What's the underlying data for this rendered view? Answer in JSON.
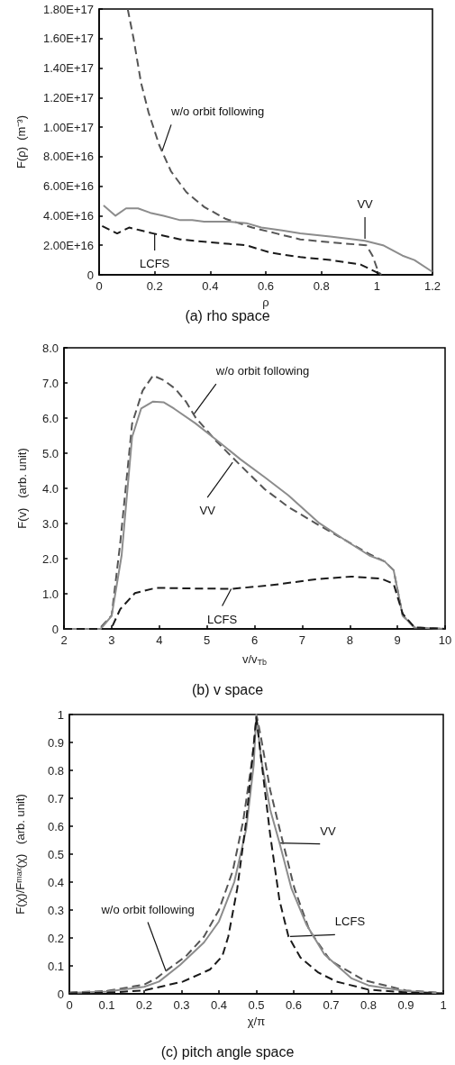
{
  "chart_data": [
    {
      "type": "line",
      "title": "(a) rho space",
      "xlabel": "ρ",
      "ylabel": "F(ρ)  (m⁻³)",
      "xlim": [
        0,
        1.2
      ],
      "ylim": [
        0,
        1.8e+17
      ],
      "xticks": [
        0,
        0.2,
        0.4,
        0.6,
        0.8,
        1,
        1.2
      ],
      "yticks": [
        0,
        {
          "value": 2e+16,
          "label": "2.00E+16"
        },
        {
          "value": 4e+16,
          "label": "4.00E+16"
        },
        {
          "value": 6e+16,
          "label": "6.00E+16"
        },
        {
          "value": 8e+16,
          "label": "8.00E+16"
        },
        {
          "value": 1e+17,
          "label": "1.00E+17"
        },
        {
          "value": 1.2e+17,
          "label": "1.20E+17"
        },
        {
          "value": 1.4e+17,
          "label": "1.40E+17"
        },
        {
          "value": 1.6e+17,
          "label": "1.60E+17"
        },
        {
          "value": 1.8e+17,
          "label": "1.80E+17"
        }
      ],
      "series": [
        {
          "color": "#555555",
          "line_style": "dashed",
          "x": [
            0.103,
            0.124,
            0.151,
            0.178,
            0.216,
            0.259,
            0.314,
            0.378,
            0.454,
            0.551,
            0.638,
            0.724,
            0.832,
            0.962,
            0.984,
            1.005,
            1.016
          ],
          "values": [
            1.8e+17,
            1.6e+17,
            1.3e+17,
            1.1e+17,
            8.8e+16,
            7e+16,
            5.6e+16,
            4.6e+16,
            3.8e+16,
            3.2e+16,
            2.8e+16,
            2.4e+16,
            2.2e+16,
            2e+16,
            1.3e+16,
            2000000000000000.0,
            0
          ]
        },
        {
          "color": "#8c8c8c",
          "line_style": "solid",
          "x": [
            0.016,
            0.059,
            0.097,
            0.14,
            0.184,
            0.232,
            0.292,
            0.335,
            0.378,
            0.465,
            0.53,
            0.584,
            0.659,
            0.724,
            0.832,
            0.919,
            0.957,
            1.022,
            1.092,
            1.135,
            1.2
          ],
          "values": [
            4.7e+16,
            4e+16,
            4.5e+16,
            4.5e+16,
            4.2e+16,
            4e+16,
            3.7e+16,
            3.7e+16,
            3.6e+16,
            3.6e+16,
            3.5e+16,
            3.2e+16,
            3e+16,
            2.8e+16,
            2.6e+16,
            2.4e+16,
            2.3e+16,
            2e+16,
            1.3e+16,
            1e+16,
            2000000000000000.0
          ]
        },
        {
          "color": "#1a1a1a",
          "line_style": "dashed",
          "x": [
            0.011,
            0.065,
            0.108,
            0.151,
            0.195,
            0.292,
            0.4,
            0.53,
            0.616,
            0.724,
            0.832,
            0.941,
            0.995,
            1.016
          ],
          "values": [
            3.3e+16,
            2.8e+16,
            3.2e+16,
            3e+16,
            2.8e+16,
            2.4e+16,
            2.2e+16,
            2e+16,
            1.5e+16,
            1.2e+16,
            1e+16,
            7000000000000000.0,
            2000000000000000.0,
            0
          ]
        }
      ],
      "annotations": [
        {
          "text": "w/o orbit following",
          "x": 0.227,
          "y": 8.4e+16
        },
        {
          "text": "VV",
          "x": 0.957,
          "y": 2.44e+16
        },
        {
          "text": "LCFS",
          "x": 0.2,
          "y": 2.75e+16
        }
      ]
    },
    {
      "type": "line",
      "title": "(b) v space",
      "xlabel": "v/v$_{Tb}$",
      "ylabel": "F(v)   (arb. unit)",
      "xlim": [
        2,
        10
      ],
      "ylim": [
        0,
        8
      ],
      "xticks": [
        2,
        3,
        4,
        5,
        6,
        7,
        8,
        9,
        10
      ],
      "yticks": [
        0,
        {
          "value": 1,
          "label": "1.0"
        },
        {
          "value": 2,
          "label": "2.0"
        },
        {
          "value": 3,
          "label": "3.0"
        },
        {
          "value": 4,
          "label": "4.0"
        },
        {
          "value": 5,
          "label": "5.0"
        },
        {
          "value": 6,
          "label": "6.0"
        },
        {
          "value": 7,
          "label": "7.0"
        },
        {
          "value": 8,
          "label": "8.0"
        }
      ],
      "series": [
        {
          "color": "#555555",
          "line_style": "dashed",
          "x": [
            2,
            2.74,
            3.0,
            3.18,
            3.43,
            3.65,
            3.87,
            4.09,
            4.34,
            4.57,
            4.76,
            5.2,
            5.7,
            6.21,
            6.71,
            7.34,
            7.91,
            8.41,
            8.73,
            8.92,
            9.11,
            9.36,
            10
          ],
          "values": [
            0,
            0,
            0.38,
            2.43,
            5.84,
            6.78,
            7.21,
            7.08,
            6.83,
            6.45,
            6.02,
            5.34,
            4.66,
            3.98,
            3.47,
            2.96,
            2.52,
            2.13,
            1.92,
            1.67,
            0.38,
            0.04,
            0
          ]
        },
        {
          "color": "#8c8c8c",
          "line_style": "solid",
          "x": [
            2,
            2.77,
            3.0,
            3.21,
            3.43,
            3.62,
            3.87,
            4.09,
            4.31,
            4.76,
            5.2,
            5.7,
            6.21,
            6.71,
            7.34,
            7.91,
            8.41,
            8.73,
            8.92,
            9.11,
            9.36,
            10
          ],
          "values": [
            0,
            0,
            0.37,
            2.09,
            5.46,
            6.27,
            6.47,
            6.45,
            6.27,
            5.85,
            5.38,
            4.83,
            4.32,
            3.8,
            3.03,
            2.52,
            2.09,
            1.92,
            1.67,
            0.38,
            0.04,
            0
          ]
        },
        {
          "color": "#1a1a1a",
          "line_style": "dashed",
          "x": [
            2,
            2.99,
            3.18,
            3.49,
            3.94,
            4.76,
            5.51,
            6.33,
            7.28,
            8.03,
            8.66,
            8.92,
            9.11,
            9.36,
            10
          ],
          "values": [
            0,
            0,
            0.56,
            1.02,
            1.17,
            1.15,
            1.14,
            1.24,
            1.41,
            1.49,
            1.43,
            1.28,
            0.43,
            0.04,
            0
          ]
        }
      ],
      "annotations": [
        {
          "text": "w/o orbit following",
          "x": 4.72,
          "y": 6.1
        },
        {
          "text": "VV",
          "x": 5.54,
          "y": 4.74
        },
        {
          "text": "LCFS",
          "x": 5.51,
          "y": 1.14
        }
      ]
    },
    {
      "type": "line",
      "title": "(c) pitch angle space",
      "xlabel": "χ/π",
      "ylabel": "F(χ)/Fᵐᵃˣ(χ)   (arb. unit)",
      "xlim": [
        0,
        1
      ],
      "ylim": [
        0,
        1
      ],
      "xticks": [
        0,
        0.1,
        0.2,
        0.3,
        0.4,
        0.5,
        0.6,
        0.7,
        0.8,
        0.9,
        1
      ],
      "yticks": [
        0,
        0.1,
        0.2,
        0.3,
        0.4,
        0.5,
        0.6,
        0.7,
        0.8,
        0.9,
        1
      ],
      "series": [
        {
          "color": "#555555",
          "line_style": "dashed",
          "x": [
            0,
            0.1,
            0.2,
            0.232,
            0.258,
            0.312,
            0.36,
            0.4,
            0.437,
            0.465,
            0.489,
            0.501,
            0.513,
            0.537,
            0.566,
            0.602,
            0.642,
            0.698,
            0.787,
            0.9,
            1
          ],
          "values": [
            0.005,
            0.01,
            0.033,
            0.055,
            0.082,
            0.135,
            0.205,
            0.3,
            0.44,
            0.62,
            0.84,
            0.995,
            0.914,
            0.73,
            0.57,
            0.377,
            0.227,
            0.119,
            0.049,
            0.012,
            0.003
          ]
        },
        {
          "color": "#8c8c8c",
          "line_style": "solid",
          "x": [
            0,
            0.1,
            0.2,
            0.24,
            0.296,
            0.36,
            0.4,
            0.441,
            0.473,
            0.493,
            0.5,
            0.513,
            0.537,
            0.562,
            0.594,
            0.634,
            0.682,
            0.755,
            0.8,
            0.9,
            1
          ],
          "values": [
            0.003,
            0.008,
            0.025,
            0.044,
            0.103,
            0.184,
            0.259,
            0.4,
            0.59,
            0.82,
            1.0,
            0.84,
            0.66,
            0.54,
            0.377,
            0.248,
            0.141,
            0.055,
            0.03,
            0.01,
            0.002
          ]
        },
        {
          "color": "#1a1a1a",
          "line_style": "dashed",
          "x": [
            0,
            0.1,
            0.2,
            0.304,
            0.376,
            0.409,
            0.425,
            0.449,
            0.473,
            0.493,
            0.5,
            0.513,
            0.537,
            0.562,
            0.586,
            0.618,
            0.666,
            0.714,
            0.8,
            0.9,
            1
          ],
          "values": [
            0.002,
            0.004,
            0.012,
            0.044,
            0.087,
            0.135,
            0.205,
            0.377,
            0.62,
            0.89,
            0.99,
            0.84,
            0.57,
            0.334,
            0.205,
            0.13,
            0.076,
            0.044,
            0.015,
            0.005,
            0.001
          ]
        }
      ],
      "annotations": [
        {
          "text": "w/o orbit following",
          "x": 0.258,
          "y": 0.082
        },
        {
          "text": "VV",
          "x": 0.562,
          "y": 0.54
        },
        {
          "text": "LCFS",
          "x": 0.59,
          "y": 0.205
        }
      ]
    }
  ]
}
